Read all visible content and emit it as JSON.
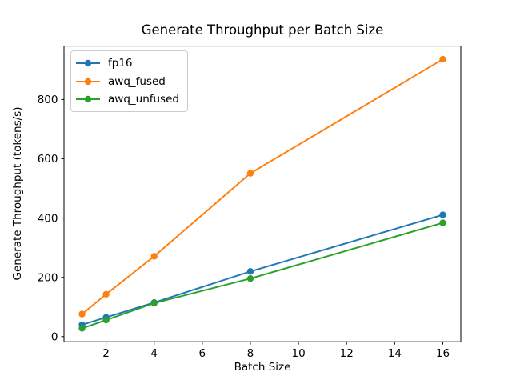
{
  "chart_data": {
    "type": "line",
    "title": "Generate Throughput per Batch Size",
    "xlabel": "Batch Size",
    "ylabel": "Generate Throughput (tokens/s)",
    "x": [
      1,
      2,
      4,
      8,
      16
    ],
    "series": [
      {
        "name": "fp16",
        "color": "#1f77b4",
        "values": [
          40,
          65,
          115,
          220,
          411
        ]
      },
      {
        "name": "awq_fused",
        "color": "#ff7f0e",
        "values": [
          76,
          143,
          271,
          551,
          936
        ]
      },
      {
        "name": "awq_unfused",
        "color": "#2ca02c",
        "values": [
          28,
          56,
          113,
          196,
          384
        ]
      }
    ],
    "xticks": [
      2,
      4,
      6,
      8,
      10,
      12,
      14,
      16
    ],
    "yticks": [
      0,
      200,
      400,
      600,
      800
    ],
    "xlim": [
      0.25,
      16.75
    ],
    "ylim": [
      -17.3,
      980.4
    ],
    "grid": false,
    "marker": "circle",
    "legend_position": "upper left",
    "axis_color": "#000000",
    "background_color": "#ffffff"
  }
}
